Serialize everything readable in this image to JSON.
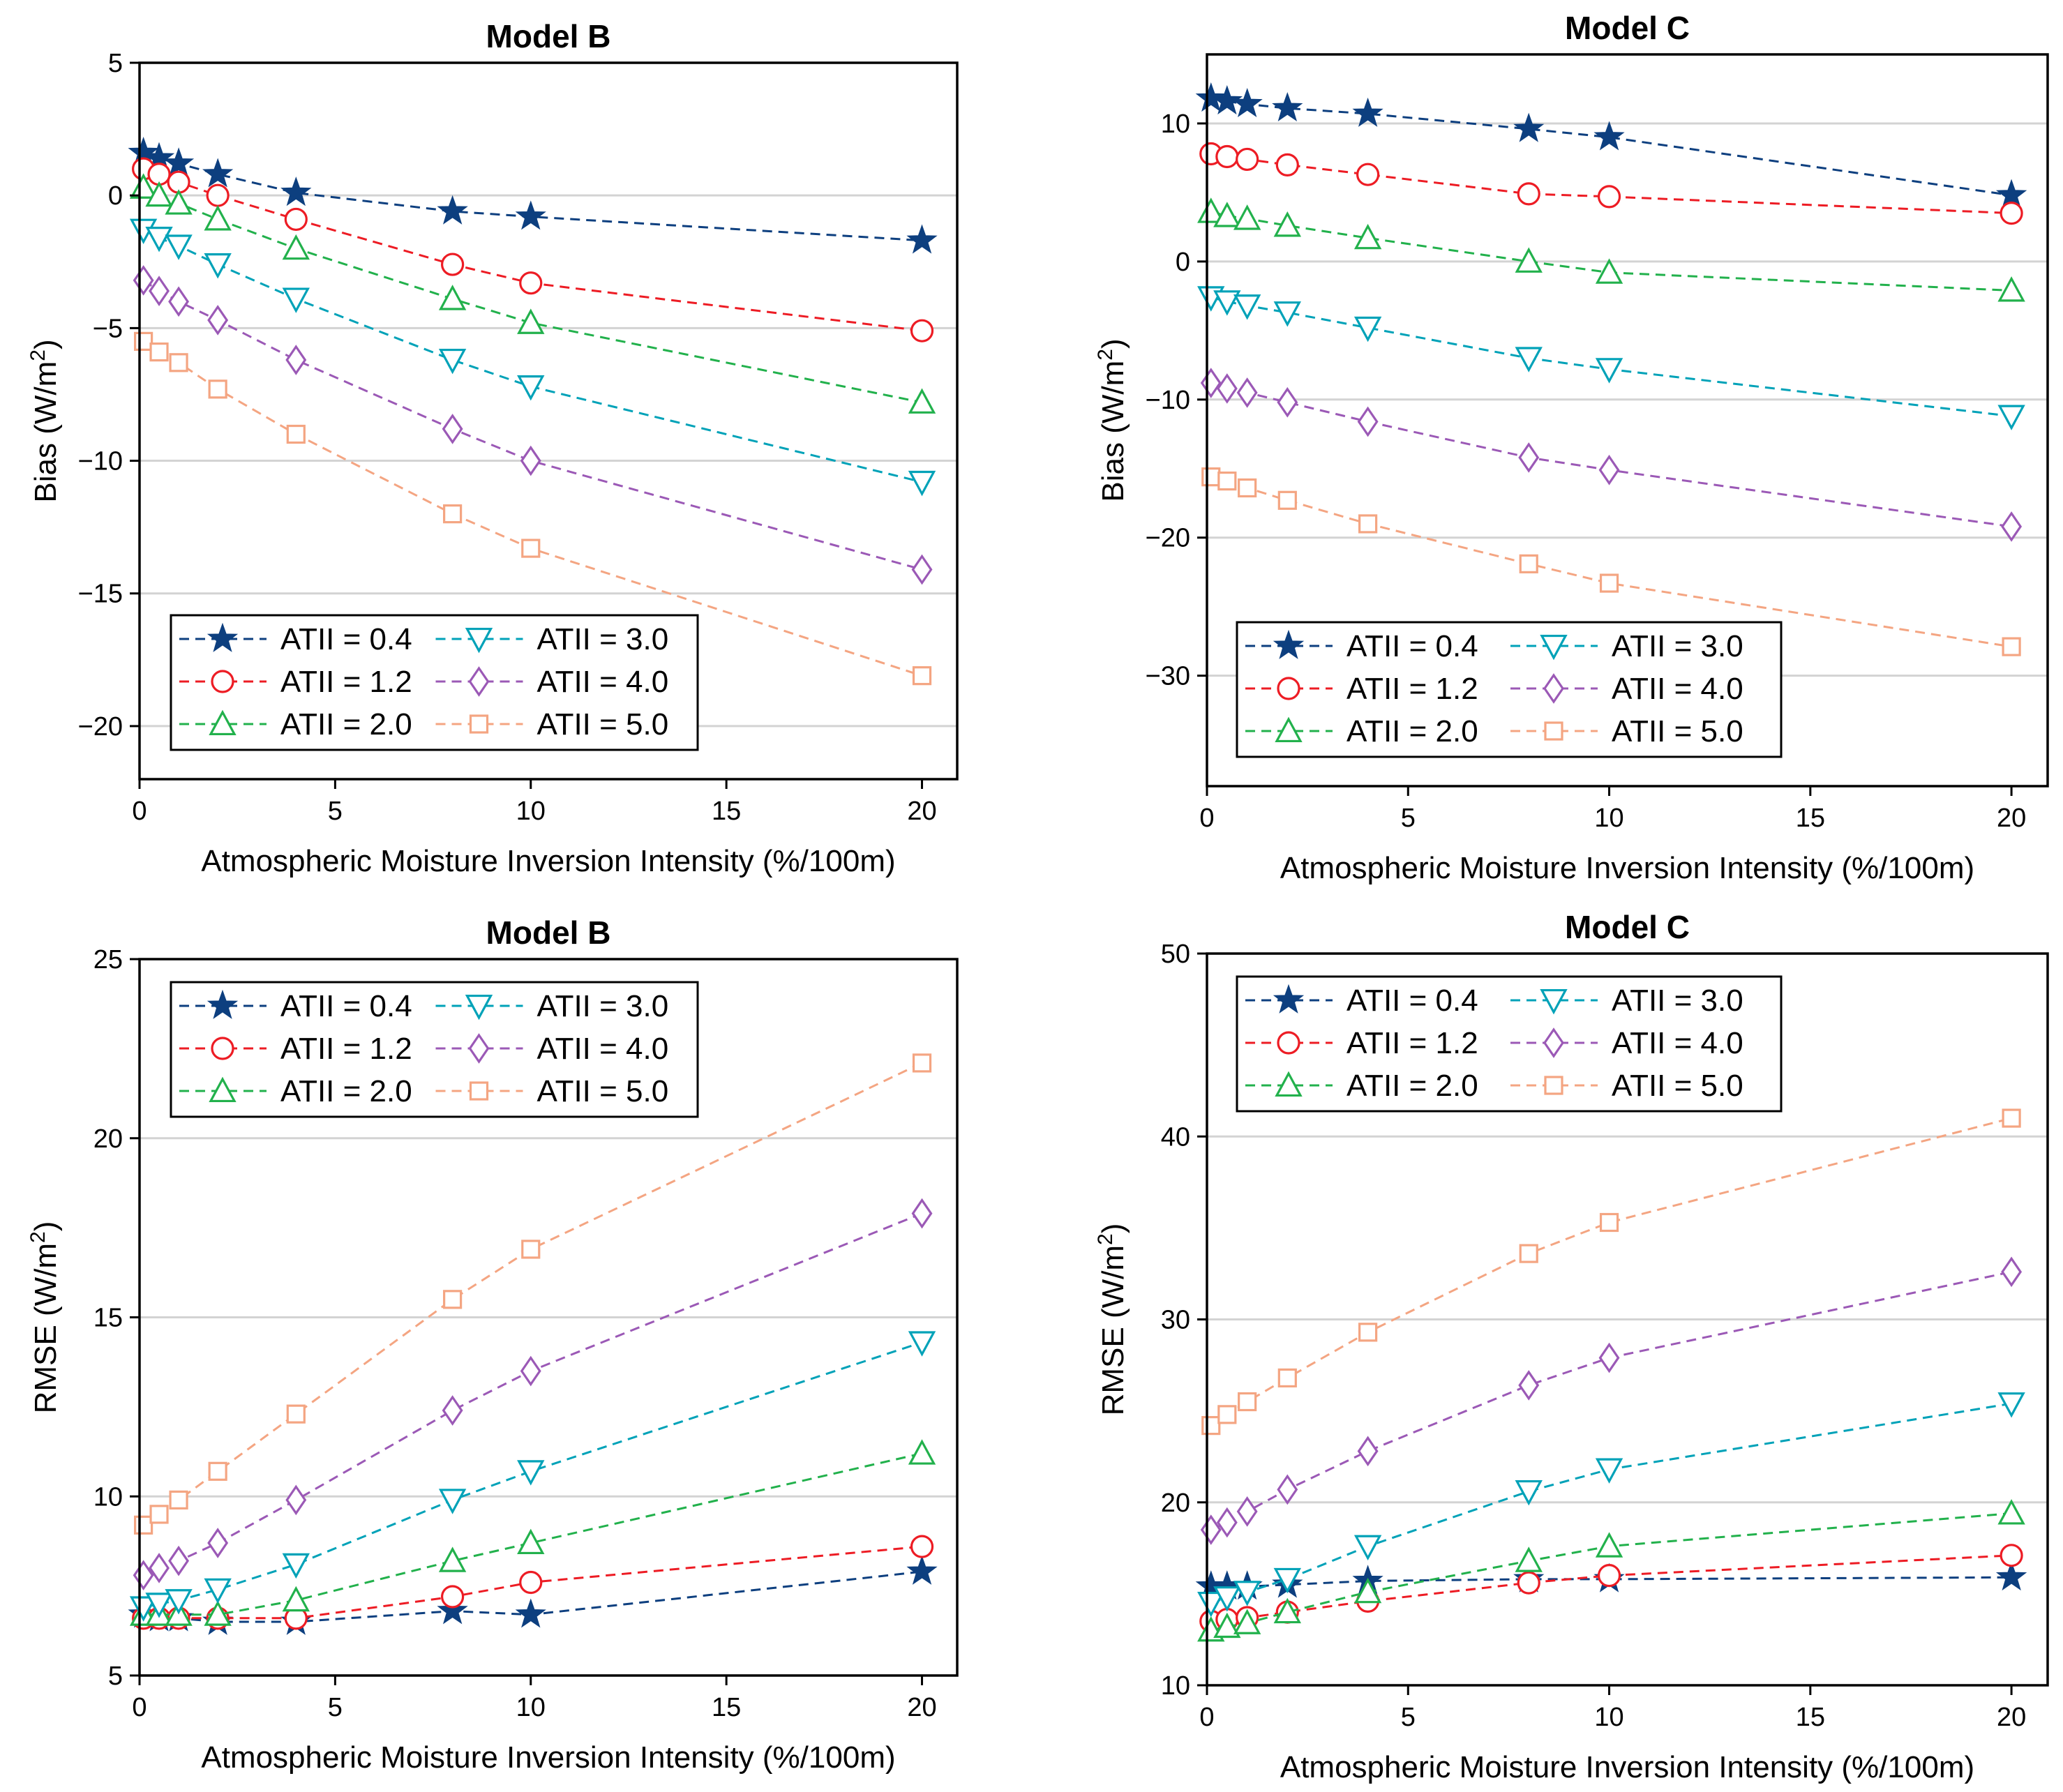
{
  "chart_data": [
    {
      "type": "line",
      "title": "Model B",
      "xlabel": "Atmospheric Moisture Inversion Intensity (%/100m)",
      "ylabel": "Bias (W/m",
      "ylabel_sup": "2",
      "ylabel_end": ")",
      "xlim": [
        0,
        20.9
      ],
      "ylim": [
        -22,
        5
      ],
      "xticks": [
        0,
        5,
        10,
        15,
        20
      ],
      "xtick_labels": [
        "0",
        "5",
        "10",
        "15",
        "20"
      ],
      "yticks": [
        5,
        0,
        -5,
        -10,
        -15,
        -20
      ],
      "ytick_labels": [
        "5",
        "0",
        "−5",
        "−10",
        "−15",
        "−20"
      ],
      "grid": "horizontal",
      "legend_position": "bottom-left",
      "x": [
        0.1,
        0.5,
        1,
        2,
        4,
        8,
        10,
        20
      ],
      "series": [
        {
          "name": "ATII = 0.4",
          "values": [
            1.6,
            1.4,
            1.2,
            0.8,
            0.1,
            -0.6,
            -0.8,
            -1.7
          ]
        },
        {
          "name": "ATII = 1.2",
          "values": [
            1.0,
            0.8,
            0.5,
            0.0,
            -0.9,
            -2.6,
            -3.3,
            -5.1
          ]
        },
        {
          "name": "ATII = 2.0",
          "values": [
            0.3,
            0.0,
            -0.3,
            -0.9,
            -2.0,
            -3.9,
            -4.8,
            -7.8
          ]
        },
        {
          "name": "ATII = 3.0",
          "values": [
            -1.3,
            -1.6,
            -1.9,
            -2.6,
            -3.9,
            -6.2,
            -7.2,
            -10.8
          ]
        },
        {
          "name": "ATII = 4.0",
          "values": [
            -3.2,
            -3.6,
            -4.0,
            -4.7,
            -6.2,
            -8.8,
            -10.0,
            -14.1
          ]
        },
        {
          "name": "ATII = 5.0",
          "values": [
            -5.5,
            -5.9,
            -6.3,
            -7.3,
            -9.0,
            -12.0,
            -13.3,
            -18.1
          ]
        }
      ]
    },
    {
      "type": "line",
      "title": "Model C",
      "xlabel": "Atmospheric Moisture Inversion Intensity (%/100m)",
      "ylabel": "Bias (W/m",
      "ylabel_sup": "2",
      "ylabel_end": ")",
      "xlim": [
        0,
        20.9
      ],
      "ylim": [
        -38,
        15
      ],
      "xticks": [
        0,
        5,
        10,
        15,
        20
      ],
      "xtick_labels": [
        "0",
        "5",
        "10",
        "15",
        "20"
      ],
      "yticks": [
        10,
        0,
        -10,
        -20,
        -30
      ],
      "ytick_labels": [
        "10",
        "0",
        "−10",
        "−20",
        "−30"
      ],
      "grid": "horizontal",
      "legend_position": "bottom-left",
      "x": [
        0.1,
        0.5,
        1,
        2,
        4,
        8,
        10,
        20
      ],
      "series": [
        {
          "name": "ATII = 0.4",
          "values": [
            11.8,
            11.6,
            11.4,
            11.1,
            10.7,
            9.6,
            9.0,
            4.8
          ]
        },
        {
          "name": "ATII = 1.2",
          "values": [
            7.8,
            7.6,
            7.4,
            7.0,
            6.3,
            4.9,
            4.7,
            3.5
          ]
        },
        {
          "name": "ATII = 2.0",
          "values": [
            3.6,
            3.3,
            3.1,
            2.6,
            1.7,
            0.0,
            -0.8,
            -2.1
          ]
        },
        {
          "name": "ATII = 3.0",
          "values": [
            -2.6,
            -2.9,
            -3.2,
            -3.7,
            -4.8,
            -7.0,
            -7.8,
            -11.2
          ]
        },
        {
          "name": "ATII = 4.0",
          "values": [
            -8.8,
            -9.2,
            -9.5,
            -10.2,
            -11.6,
            -14.2,
            -15.1,
            -19.2
          ]
        },
        {
          "name": "ATII = 5.0",
          "values": [
            -15.6,
            -15.9,
            -16.4,
            -17.3,
            -19.0,
            -21.9,
            -23.3,
            -27.9
          ]
        }
      ]
    },
    {
      "type": "line",
      "title": "Model B",
      "xlabel": "Atmospheric Moisture Inversion Intensity (%/100m)",
      "ylabel": "RMSE (W/m",
      "ylabel_sup": "2",
      "ylabel_end": ")",
      "xlim": [
        0,
        20.9
      ],
      "ylim": [
        5,
        25
      ],
      "xticks": [
        0,
        5,
        10,
        15,
        20
      ],
      "xtick_labels": [
        "0",
        "5",
        "10",
        "15",
        "20"
      ],
      "yticks": [
        5,
        10,
        15,
        20,
        25
      ],
      "ytick_labels": [
        "5",
        "10",
        "15",
        "20",
        "25"
      ],
      "grid": "horizontal",
      "legend_position": "top-left",
      "x": [
        0.1,
        0.5,
        1,
        2,
        4,
        8,
        10,
        20
      ],
      "series": [
        {
          "name": "ATII = 0.4",
          "values": [
            6.7,
            6.6,
            6.6,
            6.5,
            6.5,
            6.8,
            6.7,
            7.9
          ]
        },
        {
          "name": "ATII = 1.2",
          "values": [
            6.6,
            6.6,
            6.6,
            6.6,
            6.6,
            7.2,
            7.6,
            8.6
          ]
        },
        {
          "name": "ATII = 2.0",
          "values": [
            6.7,
            6.7,
            6.7,
            6.7,
            7.1,
            8.2,
            8.7,
            11.2
          ]
        },
        {
          "name": "ATII = 3.0",
          "values": [
            6.9,
            7.0,
            7.1,
            7.4,
            8.1,
            9.9,
            10.7,
            14.3
          ]
        },
        {
          "name": "ATII = 4.0",
          "values": [
            7.8,
            8.0,
            8.2,
            8.7,
            9.9,
            12.4,
            13.5,
            17.9
          ]
        },
        {
          "name": "ATII = 5.0",
          "values": [
            9.2,
            9.5,
            9.9,
            10.7,
            12.3,
            15.5,
            16.9,
            22.1
          ]
        }
      ]
    },
    {
      "type": "line",
      "title": "Model C",
      "xlabel": "Atmospheric Moisture Inversion Intensity (%/100m)",
      "ylabel": "RMSE (W/m",
      "ylabel_sup": "2",
      "ylabel_end": ")",
      "xlim": [
        0,
        20.9
      ],
      "ylim": [
        10,
        50
      ],
      "xticks": [
        0,
        5,
        10,
        15,
        20
      ],
      "xtick_labels": [
        "0",
        "5",
        "10",
        "15",
        "20"
      ],
      "yticks": [
        10,
        20,
        30,
        40,
        50
      ],
      "ytick_labels": [
        "10",
        "20",
        "30",
        "40",
        "50"
      ],
      "grid": "horizontal",
      "legend_position": "top-left",
      "x": [
        0.1,
        0.5,
        1,
        2,
        4,
        8,
        10,
        20
      ],
      "series": [
        {
          "name": "ATII = 0.4",
          "values": [
            15.4,
            15.4,
            15.4,
            15.5,
            15.7,
            15.8,
            15.8,
            15.9
          ]
        },
        {
          "name": "ATII = 1.2",
          "values": [
            13.5,
            13.6,
            13.7,
            14.0,
            14.6,
            15.6,
            16.0,
            17.1
          ]
        },
        {
          "name": "ATII = 2.0",
          "values": [
            13.0,
            13.2,
            13.4,
            14.0,
            15.1,
            16.8,
            17.6,
            19.4
          ]
        },
        {
          "name": "ATII = 3.0",
          "values": [
            14.5,
            14.8,
            15.1,
            15.8,
            17.6,
            20.6,
            21.8,
            25.4
          ]
        },
        {
          "name": "ATII = 4.0",
          "values": [
            18.5,
            18.9,
            19.5,
            20.7,
            22.8,
            26.4,
            27.9,
            32.6
          ]
        },
        {
          "name": "ATII = 5.0",
          "values": [
            24.2,
            24.8,
            25.5,
            26.8,
            29.3,
            33.6,
            35.3,
            41.0
          ]
        }
      ]
    }
  ],
  "styles": {
    "series_colors": [
      "#0d3f7f",
      "#ed1c24",
      "#22b14c",
      "#00a2b8",
      "#9b59b6",
      "#f4a582"
    ],
    "series_markers": [
      "star",
      "circle",
      "triangle-up",
      "triangle-down",
      "diamond",
      "square"
    ],
    "grid_color": "#d3d3d3",
    "axis_color": "#000000"
  }
}
